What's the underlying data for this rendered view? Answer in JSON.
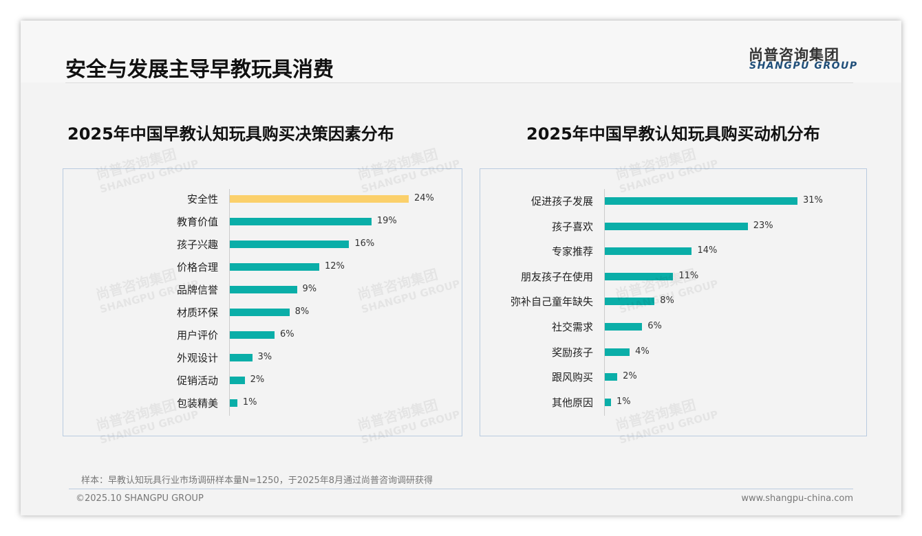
{
  "header": {
    "title": "安全与发展主导早教玩具消费",
    "logo_cn": "尚普咨询集团",
    "logo_en": "SHANGPU GROUP"
  },
  "colors": {
    "teal": "#0aaea8",
    "highlight": "#fbd06b"
  },
  "chart_data": [
    {
      "type": "bar",
      "orientation": "horizontal",
      "title": "2025年中国早教认知玩具购买决策因素分布",
      "categories": [
        "安全性",
        "教育价值",
        "孩子兴趣",
        "价格合理",
        "品牌信誉",
        "材质环保",
        "用户评价",
        "外观设计",
        "促销活动",
        "包装精美"
      ],
      "values": [
        24,
        19,
        16,
        12,
        9,
        8,
        6,
        3,
        2,
        1
      ],
      "labels": [
        "24%",
        "19%",
        "16%",
        "12%",
        "9%",
        "8%",
        "6%",
        "3%",
        "2%",
        "1%"
      ],
      "highlight_index": 0,
      "xlim": [
        0,
        24
      ]
    },
    {
      "type": "bar",
      "orientation": "horizontal",
      "title": "2025年中国早教认知玩具购买动机分布",
      "categories": [
        "促进孩子发展",
        "孩子喜欢",
        "专家推荐",
        "朋友孩子在使用",
        "弥补自己童年缺失",
        "社交需求",
        "奖励孩子",
        "跟风购买",
        "其他原因"
      ],
      "values": [
        31,
        23,
        14,
        11,
        8,
        6,
        4,
        2,
        1
      ],
      "labels": [
        "31%",
        "23%",
        "14%",
        "11%",
        "8%",
        "6%",
        "4%",
        "2%",
        "1%"
      ],
      "highlight_index": -1,
      "xlim": [
        0,
        31
      ]
    }
  ],
  "footer": {
    "note": "样本：早教认知玩具行业市场调研样本量N=1250，于2025年8月通过尚普咨询调研获得",
    "copyright": "©2025.10 SHANGPU GROUP",
    "website": "www.shangpu-china.com"
  }
}
